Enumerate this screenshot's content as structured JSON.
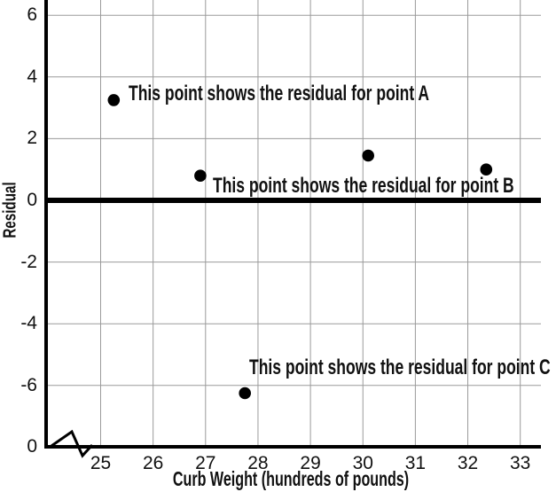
{
  "chart_data": {
    "type": "scatter",
    "title": "",
    "xlabel": "Curb Weight (hundreds of pounds)",
    "ylabel": "Residual",
    "x_ticks": [
      25,
      26,
      27,
      28,
      29,
      30,
      31,
      32,
      33
    ],
    "y_ticks": [
      6,
      4,
      2,
      0,
      -2,
      -4,
      -6
    ],
    "origin_tick_label": "0",
    "x_axis_break": true,
    "xlim": [
      24,
      33.4
    ],
    "ylim": [
      -8,
      6.5
    ],
    "grid": true,
    "zero_reference_line": true,
    "legend": false,
    "points": [
      {
        "x": 25.25,
        "y": 3.25
      },
      {
        "x": 26.9,
        "y": 0.8
      },
      {
        "x": 27.75,
        "y": -6.25
      },
      {
        "x": 30.1,
        "y": 1.45
      },
      {
        "x": 32.35,
        "y": 1.0
      }
    ],
    "annotations": [
      {
        "text": "This point shows the residual for point A",
        "anchor_x": 25.53,
        "anchor_y": 3.44
      },
      {
        "text": "This point shows the residual for point B",
        "anchor_x": 27.14,
        "anchor_y": 0.47
      },
      {
        "text": "This point shows the residual for point C",
        "anchor_x": 27.83,
        "anchor_y": -5.42
      }
    ],
    "colors": {
      "points": "#000000",
      "grid": "#9a9a9a",
      "axes": "#000000",
      "zero_line": "#000000",
      "text": "#111111",
      "background": "#ffffff"
    }
  }
}
